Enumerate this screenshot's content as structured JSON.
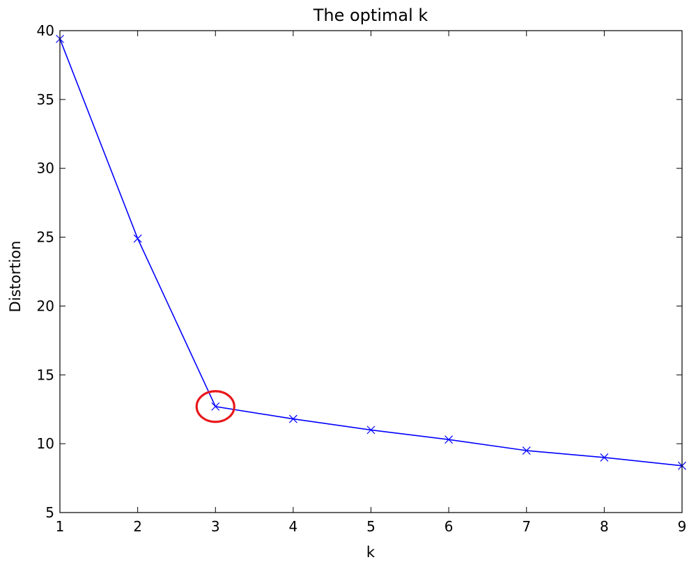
{
  "chart_data": {
    "type": "line",
    "title": "The optimal k",
    "xlabel": "k",
    "ylabel": "Distortion",
    "xlim": [
      1,
      9
    ],
    "ylim": [
      5,
      40
    ],
    "xticks": [
      "1",
      "2",
      "3",
      "4",
      "5",
      "6",
      "7",
      "8",
      "9"
    ],
    "yticks": [
      "5",
      "10",
      "15",
      "20",
      "25",
      "30",
      "35",
      "40"
    ],
    "grid": false,
    "marker": "x",
    "x": [
      1,
      2,
      3,
      4,
      5,
      6,
      7,
      8,
      9
    ],
    "y": [
      39.4,
      24.9,
      12.7,
      11.8,
      11.0,
      10.3,
      9.5,
      9.0,
      8.4
    ],
    "colors": {
      "line": "#0000ff",
      "highlight": "#e8181c",
      "axes": "#000000"
    },
    "highlight": {
      "k": 3,
      "distortion": 12.7,
      "shape": "circle"
    }
  }
}
